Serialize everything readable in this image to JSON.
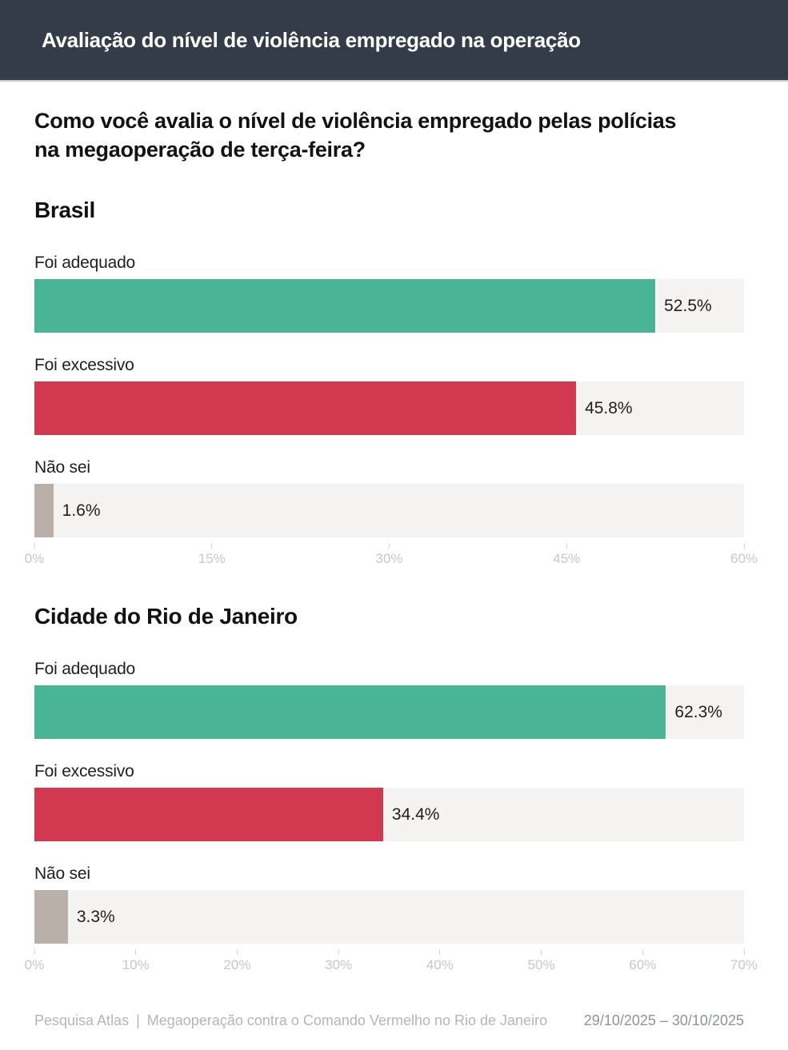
{
  "header": {
    "title": "Avaliação do nível de violência empregado na operação"
  },
  "question": "Como você avalia o nível de violência empregado pelas polícias\nna megaoperação de terça-feira?",
  "colors": {
    "header_bg": "#343b49",
    "adequado": "#49b596",
    "excessivo": "#d23950",
    "nao_sei": "#b9b0a9",
    "track": "#f4f3f1",
    "axis_text": "#c6c7c9"
  },
  "chart_data": [
    {
      "type": "bar",
      "orientation": "horizontal",
      "title": "Brasil",
      "categories": [
        "Foi adequado",
        "Foi excessivo",
        "Não sei"
      ],
      "values": [
        52.5,
        45.8,
        1.6
      ],
      "value_labels": [
        "52.5%",
        "45.8%",
        "1.6%"
      ],
      "bar_colors": [
        "#49b596",
        "#d23950",
        "#b9b0a9"
      ],
      "xlim": [
        0,
        60
      ],
      "x_tick_values": [
        0,
        15,
        30,
        45,
        60
      ],
      "x_ticks": [
        "0%",
        "15%",
        "30%",
        "45%",
        "60%"
      ],
      "grid": false,
      "legend": false
    },
    {
      "type": "bar",
      "orientation": "horizontal",
      "title": "Cidade do Rio de Janeiro",
      "categories": [
        "Foi adequado",
        "Foi excessivo",
        "Não sei"
      ],
      "values": [
        62.3,
        34.4,
        3.3
      ],
      "value_labels": [
        "62.3%",
        "34.4%",
        "3.3%"
      ],
      "bar_colors": [
        "#49b596",
        "#d23950",
        "#b9b0a9"
      ],
      "xlim": [
        0,
        70
      ],
      "x_tick_values": [
        0,
        10,
        20,
        30,
        40,
        50,
        60,
        70
      ],
      "x_ticks": [
        "0%",
        "10%",
        "20%",
        "30%",
        "40%",
        "50%",
        "60%",
        "70%"
      ],
      "grid": false,
      "legend": false
    }
  ],
  "footer": {
    "source": "Pesquisa Atlas",
    "separator": "|",
    "description": "Megaoperação contra o Comando Vermelho no Rio de Janeiro",
    "dates": "29/10/2025 – 30/10/2025"
  }
}
